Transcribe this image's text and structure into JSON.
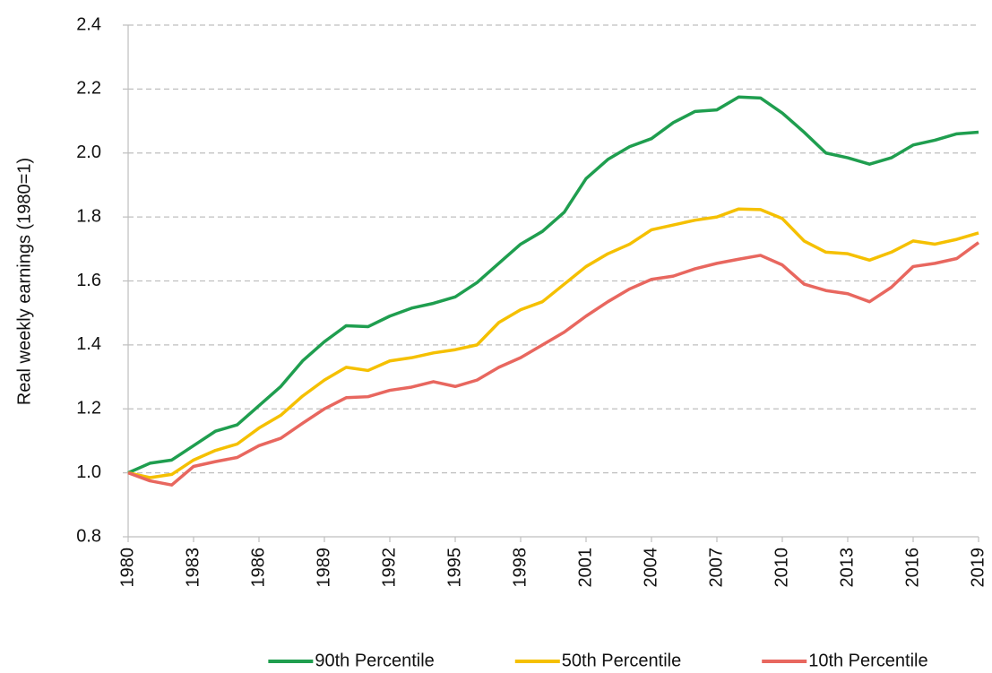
{
  "chart_data": {
    "type": "line",
    "y_label": "Real weekly earnings (1980=1)",
    "x": [
      1980,
      1981,
      1982,
      1983,
      1984,
      1985,
      1986,
      1987,
      1988,
      1989,
      1990,
      1991,
      1992,
      1993,
      1994,
      1995,
      1996,
      1997,
      1998,
      1999,
      2000,
      2001,
      2002,
      2003,
      2004,
      2005,
      2006,
      2007,
      2008,
      2009,
      2010,
      2011,
      2012,
      2013,
      2014,
      2015,
      2016,
      2017,
      2018,
      2019
    ],
    "series": [
      {
        "name": "90th Percentile",
        "color": "#1f9e4f",
        "values": [
          1.0,
          1.03,
          1.04,
          1.085,
          1.13,
          1.15,
          1.21,
          1.27,
          1.35,
          1.41,
          1.46,
          1.457,
          1.49,
          1.515,
          1.53,
          1.55,
          1.595,
          1.655,
          1.715,
          1.755,
          1.815,
          1.92,
          1.98,
          2.02,
          2.045,
          2.095,
          2.13,
          2.135,
          2.175,
          2.172,
          2.125,
          2.065,
          2.0,
          1.985,
          1.965,
          1.985,
          2.025,
          2.04,
          2.06,
          2.065
        ]
      },
      {
        "name": "50th Percentile",
        "color": "#f5c000",
        "values": [
          1.0,
          0.985,
          0.995,
          1.04,
          1.07,
          1.09,
          1.14,
          1.18,
          1.24,
          1.29,
          1.33,
          1.32,
          1.35,
          1.36,
          1.375,
          1.385,
          1.4,
          1.47,
          1.51,
          1.535,
          1.59,
          1.645,
          1.685,
          1.715,
          1.76,
          1.775,
          1.79,
          1.8,
          1.825,
          1.823,
          1.795,
          1.725,
          1.69,
          1.685,
          1.665,
          1.69,
          1.725,
          1.715,
          1.73,
          1.75
        ]
      },
      {
        "name": "10th Percentile",
        "color": "#e8675f",
        "values": [
          1.0,
          0.975,
          0.962,
          1.02,
          1.035,
          1.048,
          1.085,
          1.108,
          1.155,
          1.2,
          1.235,
          1.238,
          1.258,
          1.268,
          1.285,
          1.27,
          1.29,
          1.33,
          1.36,
          1.4,
          1.44,
          1.49,
          1.535,
          1.575,
          1.605,
          1.615,
          1.638,
          1.655,
          1.668,
          1.68,
          1.65,
          1.59,
          1.57,
          1.56,
          1.535,
          1.58,
          1.645,
          1.655,
          1.67,
          1.72
        ]
      }
    ],
    "xlim": [
      1980,
      2019
    ],
    "xticks": [
      1980,
      1983,
      1986,
      1989,
      1992,
      1995,
      1998,
      2001,
      2004,
      2007,
      2010,
      2013,
      2016,
      2019
    ],
    "ylim": [
      0.8,
      2.4
    ],
    "yticks": [
      0.8,
      {
        "value": 1.0,
        "label": "1.0"
      },
      1.2,
      1.4,
      1.6,
      1.8,
      {
        "value": 2.0,
        "label": "2.0"
      },
      2.2,
      2.4
    ],
    "grid": true,
    "legend": "bottom"
  }
}
